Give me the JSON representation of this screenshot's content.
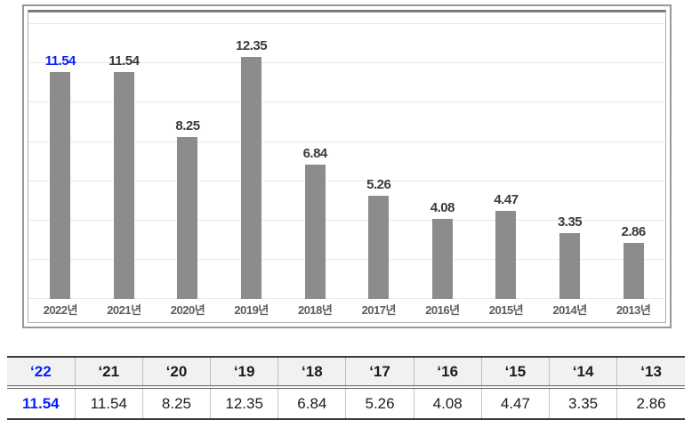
{
  "accent_blue": "#0a1fff",
  "bar_color": "#8c8c8c",
  "chart_data": {
    "type": "bar",
    "categories": [
      "2022년",
      "2021년",
      "2020년",
      "2019년",
      "2018년",
      "2017년",
      "2016년",
      "2015년",
      "2014년",
      "2013년"
    ],
    "values": [
      11.54,
      11.54,
      8.25,
      12.35,
      6.84,
      5.26,
      4.08,
      4.47,
      3.35,
      2.86
    ],
    "value_labels": [
      "11.54",
      "11.54",
      "8.25",
      "12.35",
      "6.84",
      "5.26",
      "4.08",
      "4.47",
      "3.35",
      "2.86"
    ],
    "title": "",
    "xlabel": "",
    "ylabel": "",
    "ylim": [
      0,
      14.6
    ],
    "gridline_values": [
      0,
      2,
      4,
      6,
      8,
      10,
      12,
      14
    ],
    "grid": true,
    "legend_position": "none",
    "bar_color": "#8c8c8c",
    "label_color": "#3a3a3a",
    "highlight_index": 0,
    "highlight_label_color": "#0a1fff"
  },
  "table": {
    "headers": [
      "‘22",
      "‘21",
      "‘20",
      "‘19",
      "‘18",
      "‘17",
      "‘16",
      "‘15",
      "‘14",
      "‘13"
    ],
    "values": [
      "11.54",
      "11.54",
      "8.25",
      "12.35",
      "6.84",
      "5.26",
      "4.08",
      "4.47",
      "3.35",
      "2.86"
    ],
    "highlight_column": 0
  }
}
